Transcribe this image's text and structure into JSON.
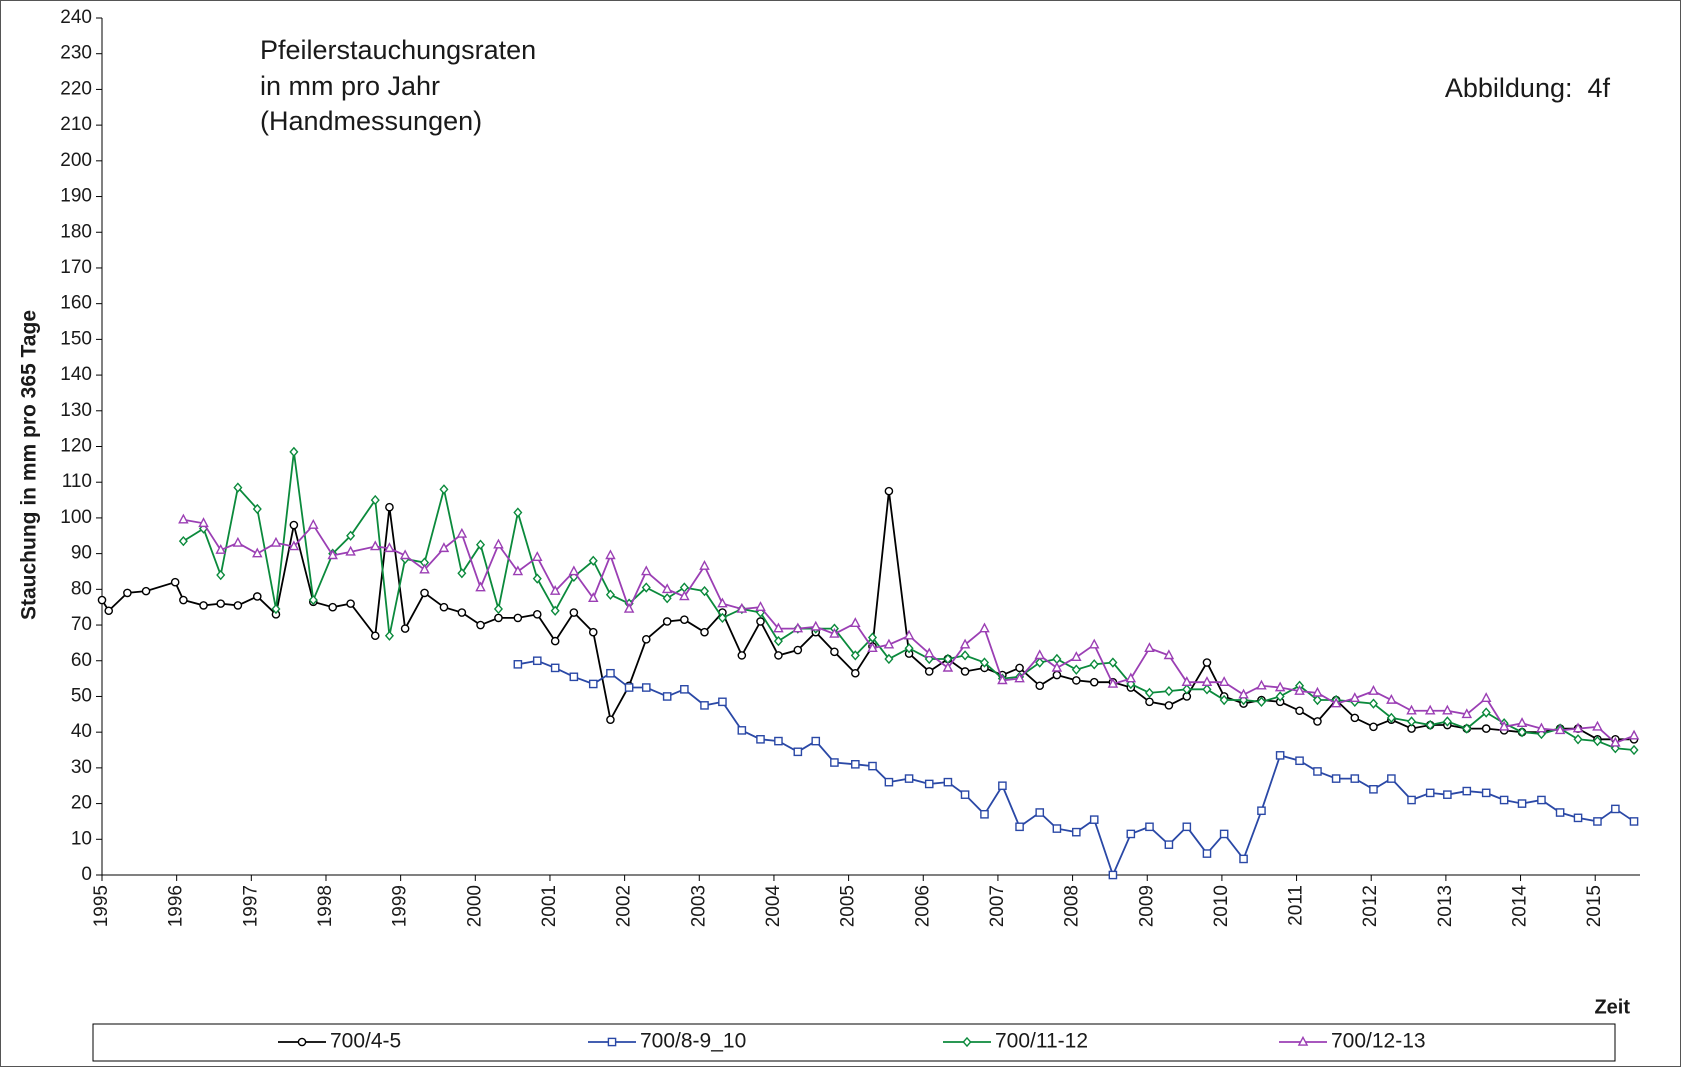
{
  "chart_data": {
    "type": "line",
    "title": [
      "Pfeilerstauchungsraten",
      "in mm pro Jahr",
      "(Handmessungen)"
    ],
    "annotation": "Abbildung:  4f",
    "x_label": "Zeit",
    "y_label": "Stauchung in mm pro 365 Tage",
    "xlim": [
      1995,
      2015.6
    ],
    "xticks": [
      1995,
      1996,
      1997,
      1998,
      1999,
      2000,
      2001,
      2002,
      2003,
      2004,
      2005,
      2006,
      2007,
      2008,
      2009,
      2010,
      2011,
      2012,
      2013,
      2014,
      2015
    ],
    "ylim": [
      0,
      240
    ],
    "yticks": [
      0,
      10,
      20,
      30,
      40,
      50,
      60,
      70,
      80,
      90,
      100,
      110,
      120,
      130,
      140,
      150,
      160,
      170,
      180,
      190,
      200,
      210,
      220,
      230,
      240
    ],
    "grid": false,
    "legend": "bottom",
    "series": [
      {
        "name": "700/4-5",
        "color": "#000000",
        "marker": "circle",
        "x": [
          1995,
          1995.09,
          1995.34,
          1995.59,
          1995.98,
          1996.09,
          1996.36,
          1996.59,
          1996.82,
          1997.08,
          1997.33,
          1997.57,
          1997.83,
          1998.09,
          1998.33,
          1998.66,
          1998.85,
          1999.06,
          1999.32,
          1999.58,
          1999.82,
          2000.07,
          2000.31,
          2000.57,
          2000.83,
          2001.07,
          2001.32,
          2001.58,
          2001.81,
          2002.06,
          2002.29,
          2002.57,
          2002.8,
          2003.07,
          2003.31,
          2003.57,
          2003.82,
          2004.06,
          2004.32,
          2004.56,
          2004.81,
          2005.09,
          2005.32,
          2005.54,
          2005.81,
          2006.08,
          2006.33,
          2006.56,
          2006.82,
          2007.06,
          2007.29,
          2007.56,
          2007.79,
          2008.05,
          2008.29,
          2008.54,
          2008.78,
          2009.03,
          2009.29,
          2009.53,
          2009.8,
          2010.03,
          2010.29,
          2010.53,
          2010.78,
          2011.04,
          2011.28,
          2011.53,
          2011.78,
          2012.03,
          2012.27,
          2012.54,
          2012.79,
          2013.02,
          2013.28,
          2013.54,
          2013.78,
          2014.02,
          2014.28,
          2014.53,
          2014.77,
          2015.03,
          2015.27,
          2015.52
        ],
        "values": [
          77,
          74,
          79,
          79.5,
          82,
          77,
          75.5,
          76,
          75.5,
          78,
          73,
          98,
          76.5,
          75,
          76,
          67,
          103,
          69,
          79,
          75,
          73.5,
          70,
          72,
          72,
          73,
          65.5,
          73.5,
          68,
          43.5,
          53,
          66,
          71,
          71.5,
          68,
          73.5,
          61.5,
          71,
          61.5,
          63,
          68,
          62.5,
          56.5,
          64,
          107.5,
          62,
          57,
          60.5,
          57,
          58,
          56,
          58,
          53,
          56,
          54.5,
          54,
          54,
          52.5,
          48.5,
          47.5,
          50,
          59.5,
          50,
          48,
          49,
          48.5,
          46,
          43,
          49,
          44,
          41.5,
          43.5,
          41,
          42,
          42,
          41,
          41,
          40.5,
          40,
          40,
          41,
          41,
          38,
          38,
          38
        ]
      },
      {
        "name": "700/8-9_10",
        "color": "#2a48a6",
        "marker": "square",
        "x": [
          2000.57,
          2000.83,
          2001.07,
          2001.32,
          2001.58,
          2001.81,
          2002.06,
          2002.29,
          2002.57,
          2002.8,
          2003.07,
          2003.31,
          2003.57,
          2003.82,
          2004.06,
          2004.32,
          2004.56,
          2004.81,
          2005.09,
          2005.32,
          2005.54,
          2005.81,
          2006.08,
          2006.33,
          2006.56,
          2006.82,
          2007.06,
          2007.29,
          2007.56,
          2007.79,
          2008.05,
          2008.29,
          2008.54,
          2008.78,
          2009.03,
          2009.29,
          2009.53,
          2009.8,
          2010.03,
          2010.29,
          2010.53,
          2010.78,
          2011.04,
          2011.28,
          2011.53,
          2011.78,
          2012.03,
          2012.27,
          2012.54,
          2012.79,
          2013.02,
          2013.28,
          2013.54,
          2013.78,
          2014.02,
          2014.28,
          2014.53,
          2014.77,
          2015.03,
          2015.27,
          2015.52
        ],
        "values": [
          59,
          60,
          58,
          55.5,
          53.5,
          56.5,
          52.5,
          52.5,
          50,
          52,
          47.5,
          48.5,
          40.5,
          38,
          37.5,
          34.5,
          37.5,
          31.5,
          31,
          30.5,
          26,
          27,
          25.5,
          26,
          22.5,
          17,
          25,
          13.5,
          17.5,
          13,
          12,
          15.5,
          0,
          11.5,
          13.5,
          8.5,
          13.5,
          6,
          11.5,
          4.5,
          18,
          33.5,
          32,
          29,
          27,
          27,
          24,
          27,
          21,
          23,
          22.5,
          23.5,
          23,
          21,
          20,
          21,
          17.5,
          16,
          15,
          18.5,
          15
        ]
      },
      {
        "name": "700/11-12",
        "color": "#0b8a3c",
        "marker": "diamond",
        "x": [
          1996.09,
          1996.36,
          1996.59,
          1996.82,
          1997.08,
          1997.33,
          1997.57,
          1997.83,
          1998.09,
          1998.33,
          1998.66,
          1998.85,
          1999.06,
          1999.32,
          1999.58,
          1999.82,
          2000.07,
          2000.31,
          2000.57,
          2000.83,
          2001.07,
          2001.32,
          2001.58,
          2001.81,
          2002.06,
          2002.29,
          2002.57,
          2002.8,
          2003.07,
          2003.31,
          2003.57,
          2003.82,
          2004.06,
          2004.32,
          2004.56,
          2004.81,
          2005.09,
          2005.32,
          2005.54,
          2005.81,
          2006.08,
          2006.33,
          2006.56,
          2006.82,
          2007.06,
          2007.29,
          2007.56,
          2007.79,
          2008.05,
          2008.29,
          2008.54,
          2008.78,
          2009.03,
          2009.29,
          2009.53,
          2009.8,
          2010.03,
          2010.29,
          2010.53,
          2010.78,
          2011.04,
          2011.28,
          2011.53,
          2011.78,
          2012.03,
          2012.27,
          2012.54,
          2012.79,
          2013.02,
          2013.28,
          2013.54,
          2013.78,
          2014.02,
          2014.28,
          2014.53,
          2014.77,
          2015.03,
          2015.27,
          2015.52
        ],
        "values": [
          93.5,
          97,
          84,
          108.5,
          102.5,
          74.5,
          118.5,
          77,
          90,
          95,
          105,
          67,
          88.5,
          87.5,
          108,
          84.5,
          92.5,
          74.5,
          101.5,
          83,
          74,
          83.5,
          88,
          78.5,
          76,
          80.5,
          77.5,
          80.5,
          79.5,
          72,
          74.5,
          73.5,
          65.5,
          69,
          69,
          69,
          61.5,
          66.5,
          60.5,
          63.5,
          60.5,
          60.5,
          61.5,
          59.5,
          55,
          55.5,
          59.5,
          60.5,
          57.5,
          59,
          59.5,
          53.5,
          51,
          51.5,
          52,
          52,
          49,
          49,
          48.5,
          50,
          53,
          49,
          49,
          48.5,
          48,
          44,
          43,
          42,
          43,
          41,
          45.5,
          42.5,
          40,
          39.5,
          41,
          38,
          37.5,
          35.5,
          35
        ]
      },
      {
        "name": "700/12-13",
        "color": "#9b3fb4",
        "marker": "triangle",
        "x": [
          1996.09,
          1996.36,
          1996.59,
          1996.82,
          1997.08,
          1997.33,
          1997.57,
          1997.83,
          1998.09,
          1998.33,
          1998.66,
          1998.85,
          1999.06,
          1999.32,
          1999.58,
          1999.82,
          2000.07,
          2000.31,
          2000.57,
          2000.83,
          2001.07,
          2001.32,
          2001.58,
          2001.81,
          2002.06,
          2002.29,
          2002.57,
          2002.8,
          2003.07,
          2003.31,
          2003.57,
          2003.82,
          2004.06,
          2004.32,
          2004.56,
          2004.81,
          2005.09,
          2005.32,
          2005.54,
          2005.81,
          2006.08,
          2006.33,
          2006.56,
          2006.82,
          2007.06,
          2007.29,
          2007.56,
          2007.79,
          2008.05,
          2008.29,
          2008.54,
          2008.78,
          2009.03,
          2009.29,
          2009.53,
          2009.8,
          2010.03,
          2010.29,
          2010.53,
          2010.78,
          2011.04,
          2011.28,
          2011.53,
          2011.78,
          2012.03,
          2012.27,
          2012.54,
          2012.79,
          2013.02,
          2013.28,
          2013.54,
          2013.78,
          2014.02,
          2014.28,
          2014.53,
          2014.77,
          2015.03,
          2015.27,
          2015.52
        ],
        "values": [
          99.5,
          98.5,
          91,
          93,
          90,
          93,
          92,
          98,
          89.5,
          90.5,
          92,
          91.5,
          89.5,
          85.5,
          91.5,
          95.5,
          80.5,
          92.5,
          85,
          89,
          79.5,
          85,
          77.5,
          89.5,
          74.5,
          85,
          80,
          78,
          86.5,
          76,
          74.5,
          75,
          69,
          69,
          69.5,
          67.5,
          70.5,
          63.5,
          64.5,
          67,
          62,
          58,
          64.5,
          69,
          54.5,
          55,
          61.5,
          58,
          61,
          64.5,
          53.5,
          55,
          63.5,
          61.5,
          54,
          54,
          54,
          50.5,
          53,
          52.5,
          51.5,
          51,
          48,
          49.5,
          51.5,
          49,
          46,
          46,
          46,
          45,
          49.5,
          41.5,
          42.5,
          41,
          40.5,
          41,
          41.5,
          37,
          39
        ]
      }
    ]
  }
}
